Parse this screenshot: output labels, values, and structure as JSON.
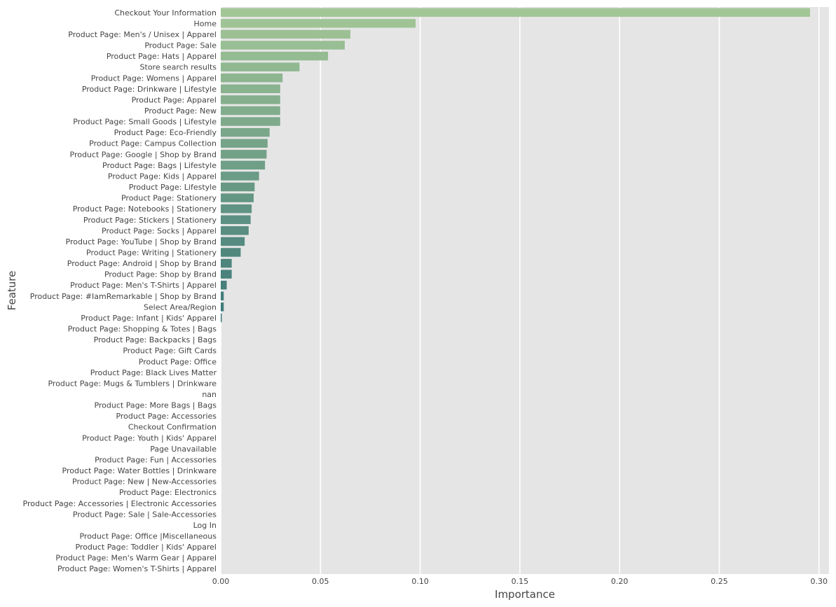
{
  "chart_data": {
    "type": "bar",
    "orientation": "horizontal",
    "xlabel": "Importance",
    "ylabel": "Feature",
    "xlim": [
      0,
      0.305
    ],
    "xticks": [
      0.0,
      0.05,
      0.1,
      0.15,
      0.2,
      0.25,
      0.3
    ],
    "xtick_labels": [
      "0.00",
      "0.05",
      "0.10",
      "0.15",
      "0.20",
      "0.25",
      "0.30"
    ],
    "grid": true,
    "background_color": "#e5e5e5",
    "grid_color": "#ffffff",
    "palette": [
      "#a3c696",
      "#3b7778"
    ],
    "categories": [
      "Checkout Your Information",
      "Home",
      "Product Page: Men's / Unisex | Apparel",
      "Product Page: Sale",
      "Product Page: Hats | Apparel",
      "Store search results",
      "Product Page: Womens | Apparel",
      "Product Page: Drinkware | Lifestyle",
      "Product Page: Apparel",
      "Product Page: New",
      "Product Page: Small Goods | Lifestyle",
      "Product Page: Eco-Friendly",
      "Product Page: Campus Collection",
      "Product Page: Google | Shop by Brand",
      "Product Page: Bags | Lifestyle",
      "Product Page: Kids | Apparel",
      "Product Page: Lifestyle",
      "Product Page: Stationery",
      "Product Page: Notebooks | Stationery",
      "Product Page: Stickers | Stationery",
      "Product Page: Socks | Apparel",
      "Product Page: YouTube | Shop by Brand",
      "Product Page: Writing | Stationery",
      "Product Page: Android | Shop by Brand",
      "Product Page: Shop by Brand",
      "Product Page: Men's T-Shirts | Apparel",
      "Product Page: #IamRemarkable | Shop by Brand",
      "Select Area/Region",
      "Product Page: Infant | Kids' Apparel",
      "Product Page: Shopping & Totes | Bags",
      "Product Page: Backpacks | Bags",
      "Product Page: Gift Cards",
      "Product Page: Office",
      "Product Page: Black Lives Matter",
      "Product Page: Mugs & Tumblers | Drinkware",
      "nan",
      "Product Page: More Bags | Bags",
      "Product Page: Accessories",
      "Checkout Confirmation",
      "Product Page: Youth | Kids' Apparel",
      "Page Unavailable",
      "Product Page: Fun | Accessories",
      "Product Page: Water Bottles | Drinkware",
      "Product Page: New | New-Accessories",
      "Product Page: Electronics",
      "Product Page: Accessories | Electronic Accessories",
      "Product Page: Sale | Sale-Accessories",
      "Log In",
      "Product Page: Office |Miscellaneous",
      "Product Page: Toddler | Kids' Apparel",
      "Product Page: Men's Warm Gear | Apparel",
      "Product Page: Women's T-Shirts | Apparel"
    ],
    "values": [
      0.2955,
      0.0977,
      0.065,
      0.0622,
      0.0538,
      0.0395,
      0.031,
      0.0298,
      0.0298,
      0.0298,
      0.0298,
      0.0245,
      0.0235,
      0.023,
      0.0222,
      0.0192,
      0.017,
      0.0165,
      0.0155,
      0.015,
      0.014,
      0.012,
      0.01,
      0.0055,
      0.0055,
      0.003,
      0.0015,
      0.0015,
      0.0005,
      0.0,
      0.0,
      0.0,
      0.0,
      0.0,
      0.0,
      0.0,
      0.0,
      0.0,
      0.0,
      0.0,
      0.0,
      0.0,
      0.0,
      0.0,
      0.0,
      0.0,
      0.0,
      0.0,
      0.0,
      0.0,
      0.0,
      0.0
    ]
  }
}
